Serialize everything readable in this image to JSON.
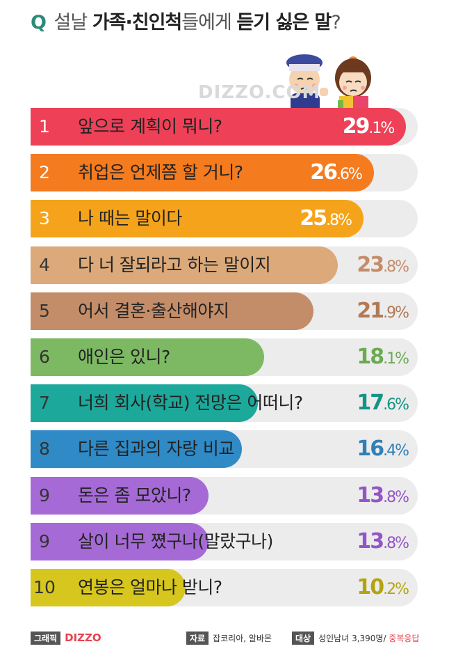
{
  "title": {
    "q": "Q",
    "part1": "설날 ",
    "part2": "가족·친인척",
    "part3": "들에게 ",
    "part4": "듣기 싫은 말",
    "part5": "?"
  },
  "watermark": "DIZZO.COM",
  "chart_data": {
    "type": "bar",
    "orientation": "horizontal",
    "xlim": [
      0,
      30
    ],
    "categories": [
      "앞으로 계획이 뭐니?",
      "취업은 언제쯤 할 거니?",
      "나 때는 말이다",
      "다 너 잘되라고 하는 말이지",
      "어서 결혼·출산해야지",
      "애인은 있니?",
      "너희 회사(학교) 전망은 어떠니?",
      "다른 집과의 자랑 비교",
      "돈은 좀 모았니?",
      "살이 너무 쪘구나(말랐구나)",
      "연봉은 얼마나 받니?"
    ],
    "ranks": [
      "1",
      "2",
      "3",
      "4",
      "5",
      "6",
      "7",
      "8",
      "9",
      "9",
      "10"
    ],
    "values": [
      29.1,
      26.6,
      25.8,
      23.8,
      21.9,
      18.1,
      17.6,
      16.4,
      13.8,
      13.8,
      10.2
    ],
    "value_labels_int": [
      "29",
      "26",
      "25",
      "23",
      "21",
      "18",
      "17",
      "16",
      "13",
      "13",
      "10"
    ],
    "value_labels_dec": [
      ".1%",
      ".6%",
      ".8%",
      ".8%",
      ".9%",
      ".1%",
      ".6%",
      ".4%",
      ".8%",
      ".8%",
      ".2%"
    ],
    "colors": [
      "#ee4057",
      "#f47b1e",
      "#f5a31a",
      "#dba97a",
      "#c48d69",
      "#7db963",
      "#1ca89a",
      "#2f8ac6",
      "#a56ad6",
      "#a56ad6",
      "#d6c61e"
    ],
    "track_color": "#ececec"
  },
  "footer": {
    "graphic_tag": "그래픽",
    "logo": "DIZZO",
    "source_tag": "자료",
    "source": "잡코리아, 알바몬",
    "target_tag": "대상",
    "target": "성인남녀 3,390명/ ",
    "target_note": "중복응답"
  }
}
